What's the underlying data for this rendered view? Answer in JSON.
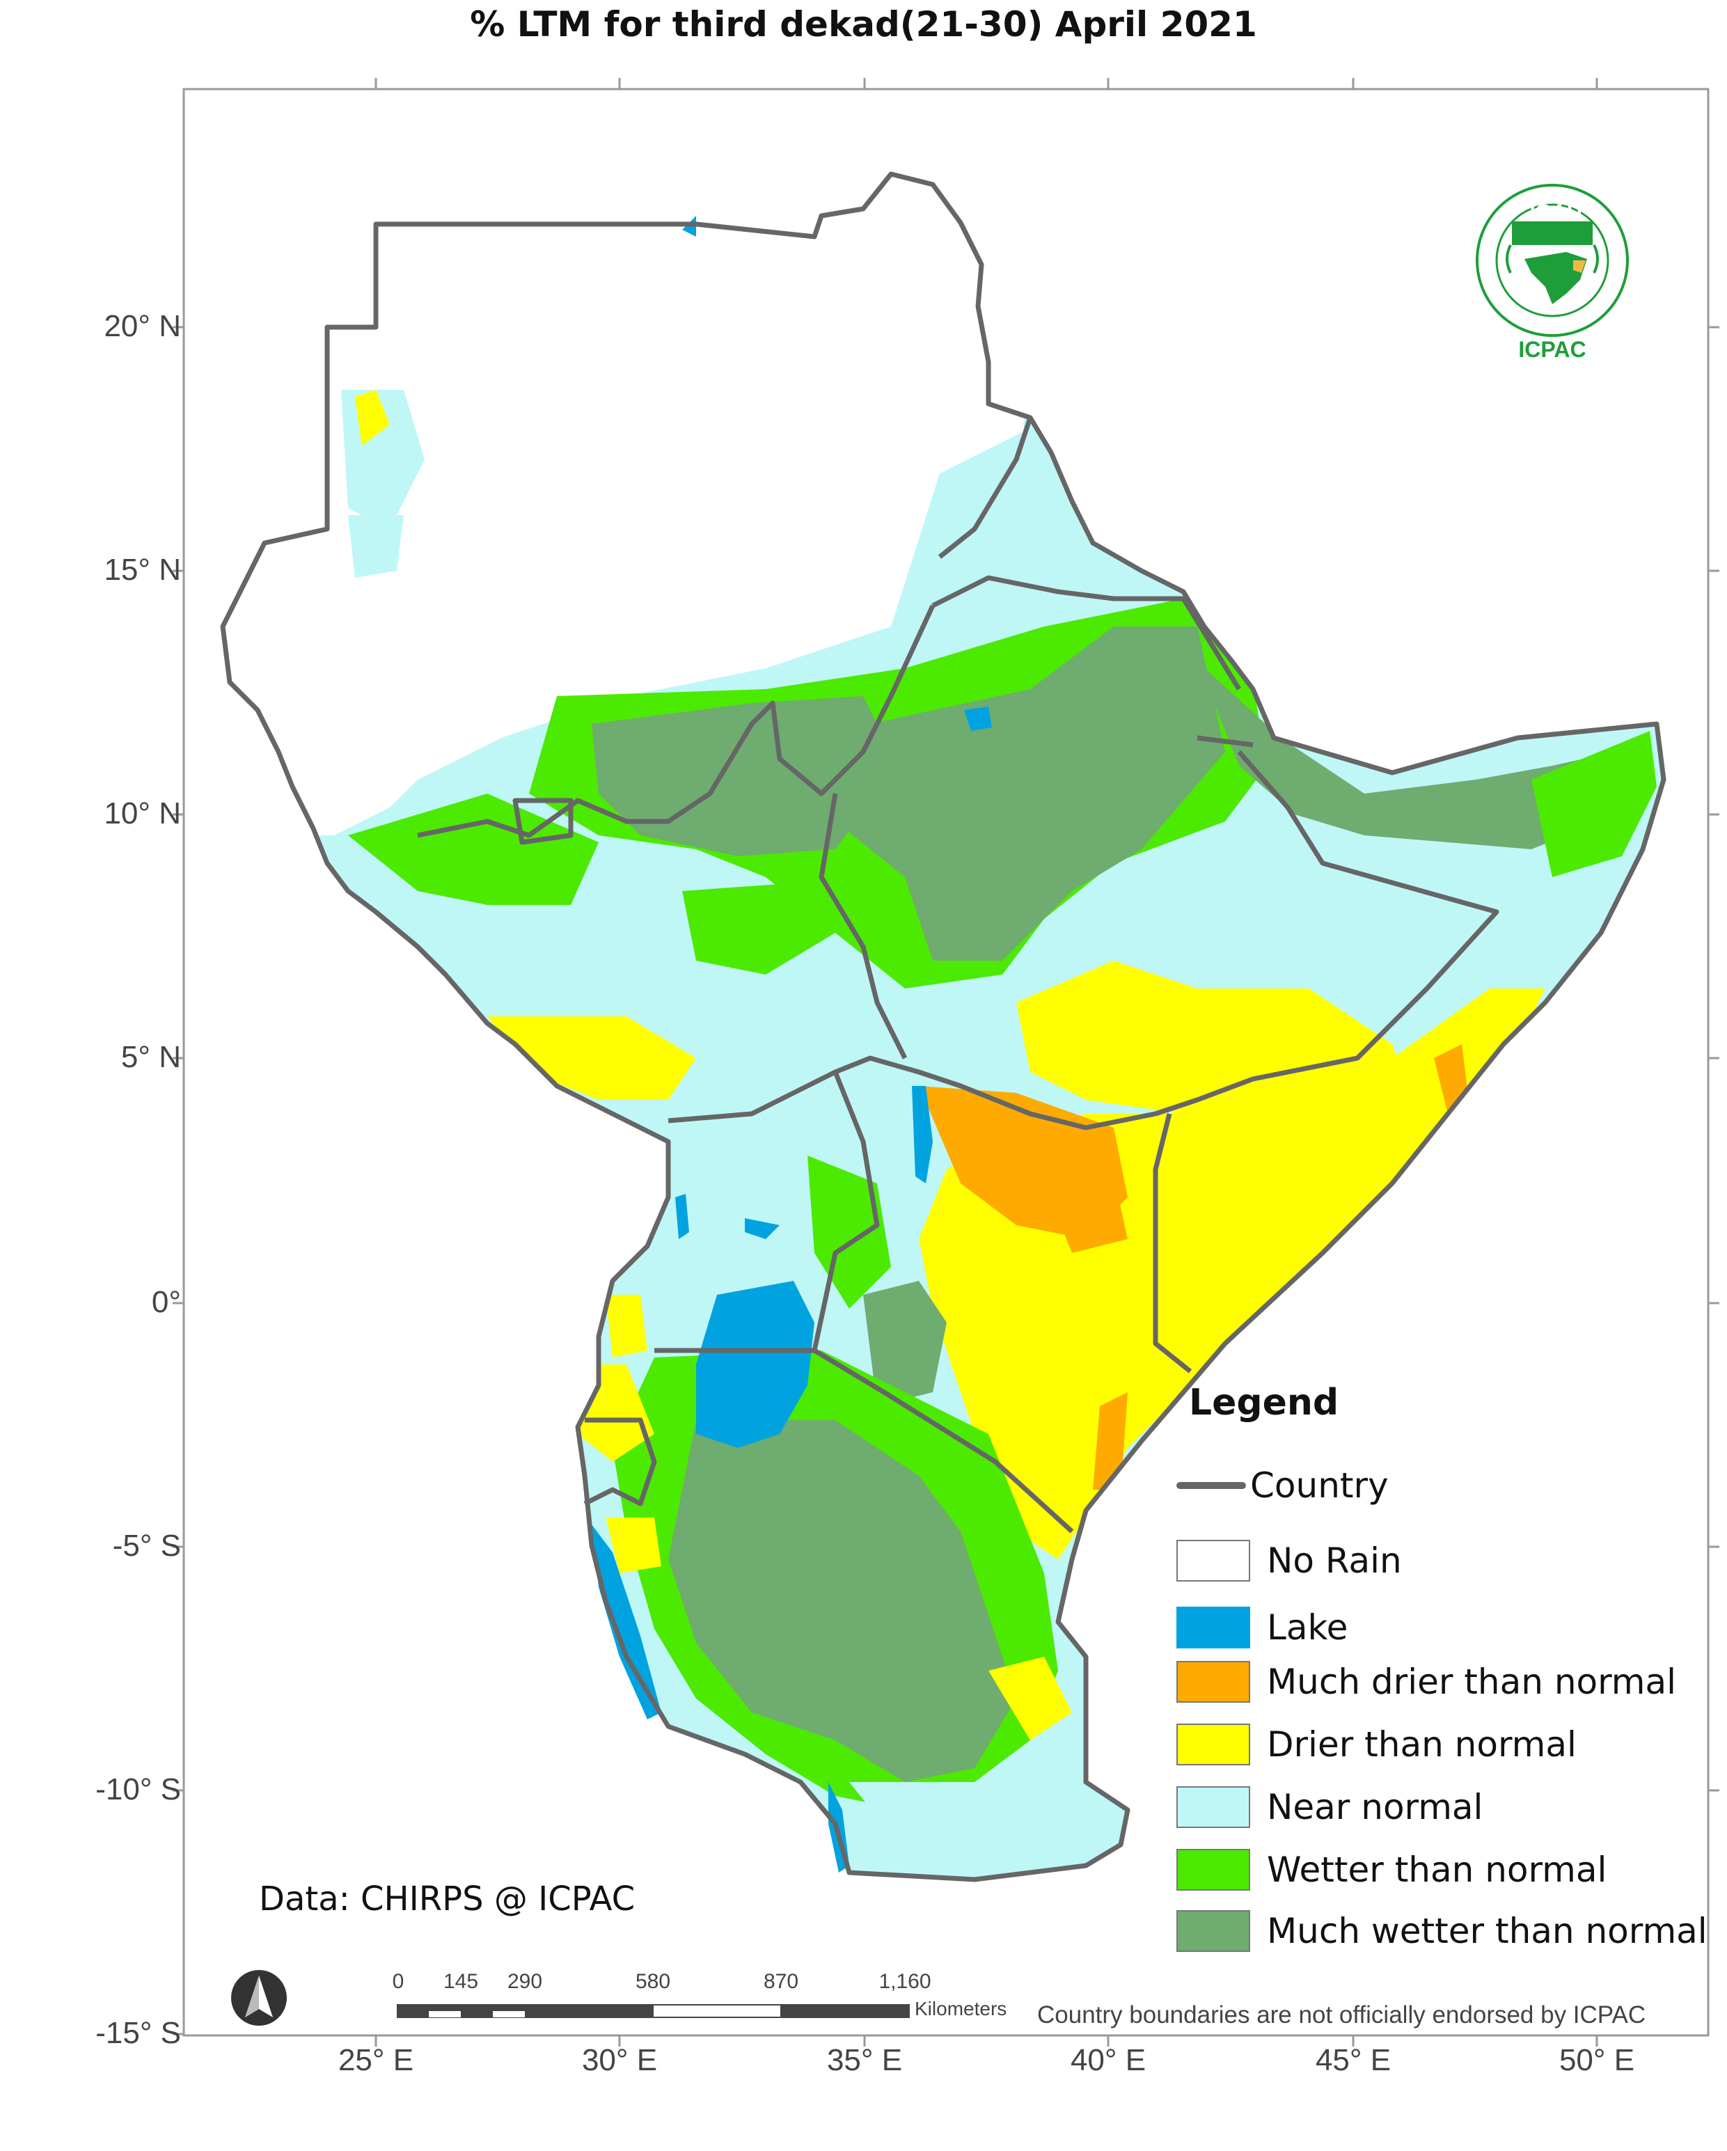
{
  "title": "% LTM  for third dekad(21-30) April 2021",
  "axes": {
    "lat_ticks": [
      "20° N",
      "15° N",
      "10° N",
      "5° N",
      "0°",
      "-5° S",
      "-10° S",
      "-15° S"
    ],
    "lon_ticks": [
      "25° E",
      "30° E",
      "35° E",
      "40° E",
      "45° E",
      "50° E"
    ]
  },
  "legend": {
    "title": "Legend",
    "country_label": "Country",
    "items": [
      {
        "label": "No Rain",
        "color": "#ffffff"
      },
      {
        "label": "Lake",
        "color": "#00a3e0"
      },
      {
        "label": "Much drier than normal",
        "color": "#ffaa00"
      },
      {
        "label": "Drier than normal",
        "color": "#ffff00"
      },
      {
        "label": "Near normal",
        "color": "#bff7f7"
      },
      {
        "label": "Wetter than normal",
        "color": "#4cea00"
      },
      {
        "label": "Much wetter than normal",
        "color": "#6fac6f"
      }
    ]
  },
  "logo": {
    "top_text": "IGAD",
    "bottom_text": "ICPAC",
    "icon": "igad-emblem-icon"
  },
  "north_arrow_icon": "north-arrow-icon",
  "data_credit": "Data: CHIRPS @ ICPAC",
  "scale_bar": {
    "numbers": [
      "0",
      "145",
      "290",
      "580",
      "870",
      "1,160"
    ],
    "unit": "Kilometers"
  },
  "disclaimer": "Country boundaries are not officially endorsed by ICPAC"
}
